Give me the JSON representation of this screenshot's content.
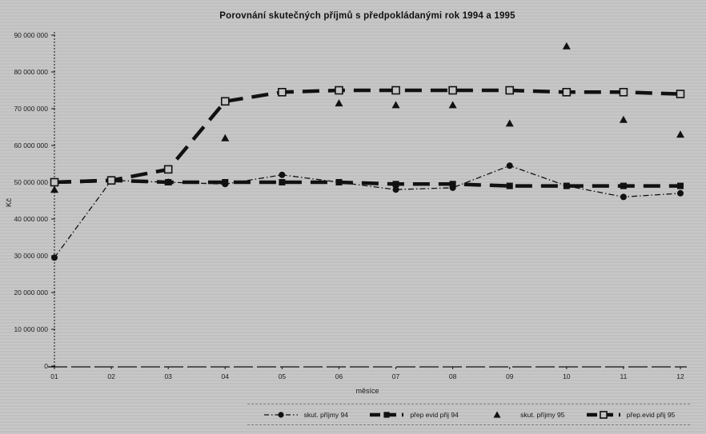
{
  "colors": {
    "background": "#c5c5c5",
    "ink": "#111111"
  },
  "chart_data": {
    "type": "line",
    "title": "Porovnání skutečných příjmů s předpokládanými rok 1994 a 1995",
    "xlabel": "měsíce",
    "ylabel": "Kč",
    "ylim": [
      0,
      90000000
    ],
    "ytick_step": 10000000,
    "ytick_labels": [
      "0",
      "10 000 000",
      "20 000 000",
      "30 000 000",
      "40 000 000",
      "50 000 000",
      "60 000 000",
      "70 000 000",
      "80 000 000",
      "90 000 000"
    ],
    "categories": [
      "01",
      "02",
      "03",
      "04",
      "05",
      "06",
      "07",
      "08",
      "09",
      "10",
      "11",
      "12"
    ],
    "grid": false,
    "legend_position": "bottom",
    "series": [
      {
        "name": "skut. příjmy 94",
        "marker": "circle-filled",
        "line": "dash-dot-thin",
        "values": [
          29500000,
          50500000,
          50000000,
          49500000,
          52000000,
          50000000,
          48000000,
          48500000,
          54500000,
          49000000,
          46000000,
          47000000
        ]
      },
      {
        "name": "přep evid přij 94",
        "marker": "square-filled",
        "line": "dash-thick",
        "values": [
          50000000,
          50500000,
          50000000,
          50000000,
          50000000,
          50000000,
          49500000,
          49500000,
          49000000,
          49000000,
          49000000,
          49000000
        ]
      },
      {
        "name": "skut. příjmy 95",
        "marker": "triangle-filled",
        "line": "none",
        "values": [
          48000000,
          50500000,
          50000000,
          62000000,
          74500000,
          71500000,
          71000000,
          71000000,
          66000000,
          87000000,
          67000000,
          63000000
        ]
      },
      {
        "name": "přep.evid přij 95",
        "marker": "square-open",
        "line": "dash-thick",
        "values": [
          50000000,
          50500000,
          53500000,
          72000000,
          74500000,
          75000000,
          75000000,
          75000000,
          75000000,
          74500000,
          74500000,
          74000000
        ]
      }
    ]
  }
}
